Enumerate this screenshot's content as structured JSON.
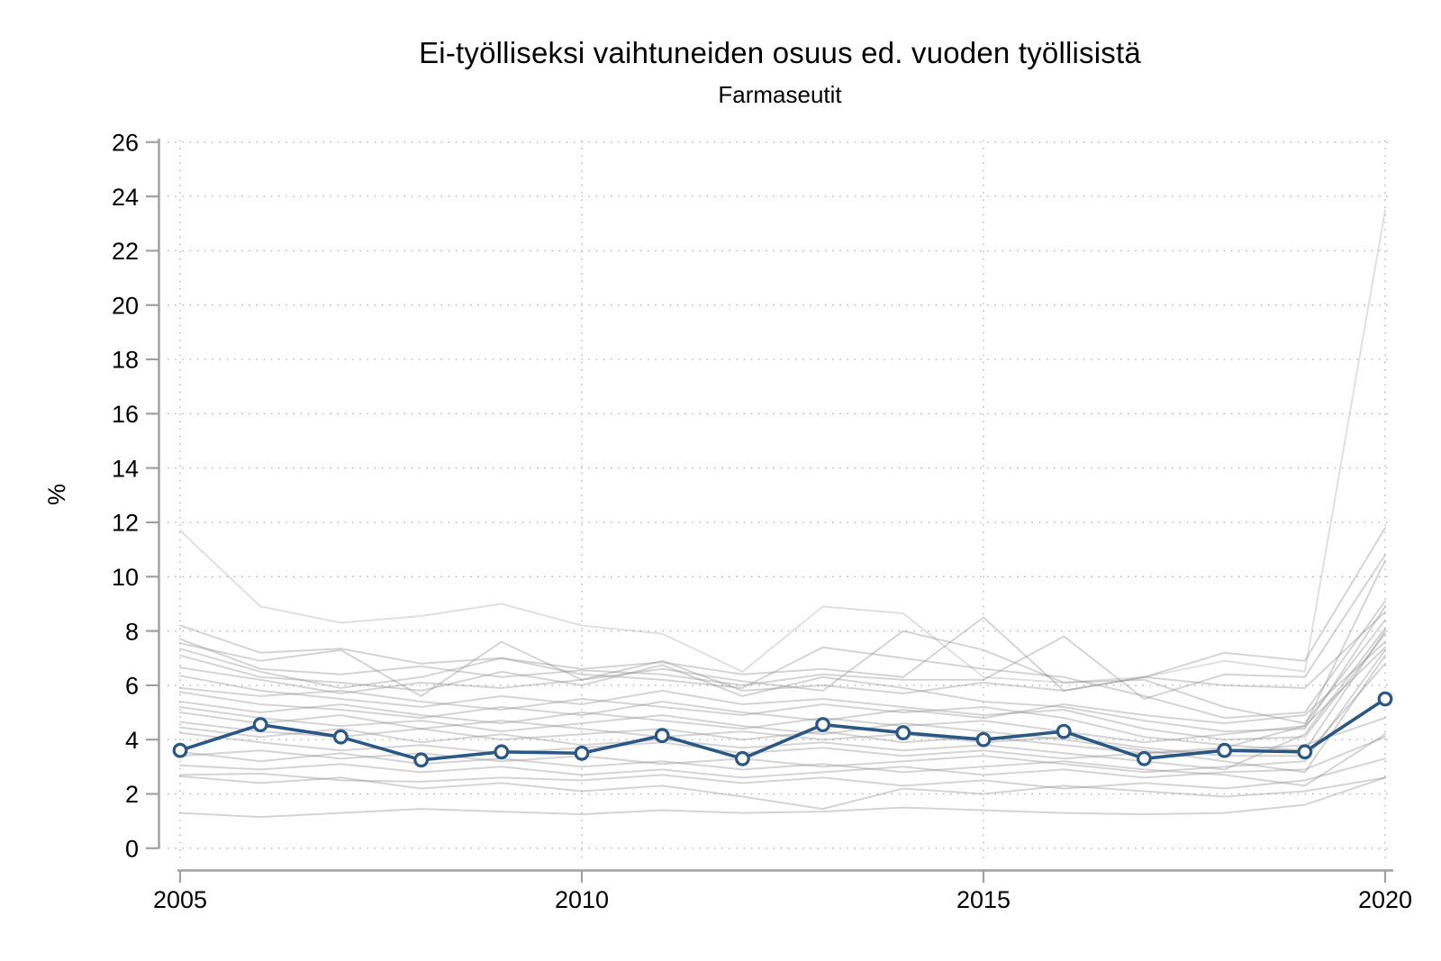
{
  "title": "Ei-työlliseksi vaihtuneiden osuus ed. vuoden työllisistä",
  "subtitle": "Farmaseutit",
  "chart_data": {
    "type": "line",
    "x": [
      2005,
      2006,
      2007,
      2008,
      2009,
      2010,
      2011,
      2012,
      2013,
      2014,
      2015,
      2016,
      2017,
      2018,
      2019,
      2020
    ],
    "xticks": [
      2005,
      2010,
      2015,
      2020
    ],
    "yticks": [
      0,
      2,
      4,
      6,
      8,
      10,
      12,
      14,
      16,
      18,
      20,
      22,
      24,
      26
    ],
    "ylim": [
      0,
      26
    ],
    "ylabel": "%",
    "grid": "dotted",
    "legend_position": "none",
    "highlight_series": {
      "name": "Farmaseutit",
      "color": "#2a5783",
      "marker": "open-circle",
      "values": [
        3.6,
        4.55,
        4.1,
        3.25,
        3.55,
        3.5,
        4.15,
        3.3,
        4.55,
        4.25,
        4.0,
        4.3,
        3.3,
        3.6,
        3.55,
        5.5
      ]
    },
    "background_series_color": "#8f8f8f",
    "background_series": [
      [
        11.7,
        8.9,
        8.3,
        8.55,
        9.0,
        8.2,
        7.9,
        6.5,
        8.9,
        8.65,
        6.3,
        6.1,
        6.3,
        6.9,
        6.5,
        23.5
      ],
      [
        8.2,
        7.2,
        7.35,
        6.8,
        7.0,
        6.6,
        6.85,
        6.4,
        6.6,
        6.3,
        8.5,
        5.8,
        6.3,
        7.2,
        6.9,
        11.8
      ],
      [
        7.7,
        6.6,
        6.4,
        6.7,
        6.3,
        6.55,
        6.4,
        6.0,
        6.4,
        6.2,
        6.2,
        7.8,
        5.5,
        6.4,
        6.3,
        10.8
      ],
      [
        7.55,
        6.9,
        7.3,
        5.6,
        7.6,
        6.2,
        6.6,
        6.15,
        5.8,
        8.0,
        7.3,
        6.1,
        6.2,
        5.2,
        4.6,
        8.4
      ],
      [
        7.35,
        6.5,
        5.9,
        6.3,
        7.0,
        6.4,
        6.2,
        5.9,
        7.4,
        7.0,
        6.6,
        6.3,
        5.6,
        4.8,
        5.0,
        9.1
      ],
      [
        7.1,
        6.3,
        6.1,
        5.8,
        6.5,
        6.0,
        6.75,
        5.6,
        6.3,
        5.9,
        5.4,
        5.2,
        4.7,
        4.3,
        4.4,
        8.9
      ],
      [
        6.65,
        6.2,
        5.7,
        6.1,
        5.9,
        6.2,
        6.9,
        5.8,
        6.0,
        5.7,
        6.1,
        5.8,
        6.3,
        6.0,
        5.9,
        8.7
      ],
      [
        6.35,
        5.8,
        5.5,
        5.2,
        5.6,
        5.3,
        5.8,
        5.3,
        5.5,
        5.2,
        4.9,
        5.1,
        4.4,
        4.0,
        4.1,
        7.9
      ],
      [
        5.9,
        5.6,
        5.8,
        5.4,
        5.1,
        5.5,
        5.2,
        4.9,
        5.3,
        5.0,
        5.2,
        4.8,
        4.1,
        3.8,
        3.6,
        8.0
      ],
      [
        5.75,
        5.3,
        5.1,
        4.8,
        5.2,
        4.9,
        5.4,
        5.0,
        4.7,
        5.1,
        4.8,
        5.3,
        4.9,
        4.6,
        4.9,
        7.6
      ],
      [
        5.4,
        5.0,
        5.3,
        4.9,
        4.6,
        5.0,
        4.7,
        4.4,
        4.8,
        4.5,
        4.7,
        4.3,
        3.9,
        4.2,
        4.5,
        7.4
      ],
      [
        5.2,
        4.8,
        4.5,
        4.7,
        4.3,
        4.6,
        4.9,
        4.5,
        4.2,
        4.6,
        4.3,
        4.0,
        3.6,
        3.2,
        2.8,
        7.1
      ],
      [
        5.0,
        4.6,
        4.9,
        4.4,
        4.7,
        4.4,
        4.1,
        4.3,
        4.0,
        4.2,
        3.9,
        4.1,
        3.7,
        3.4,
        3.4,
        6.8
      ],
      [
        4.65,
        4.3,
        4.1,
        4.4,
        4.0,
        4.2,
        4.4,
        4.0,
        4.3,
        3.9,
        4.1,
        3.8,
        3.5,
        3.7,
        4.5,
        10.6
      ],
      [
        4.45,
        4.1,
        4.4,
        3.9,
        4.2,
        3.8,
        4.0,
        3.7,
        3.9,
        3.6,
        3.8,
        3.5,
        3.2,
        2.9,
        4.2,
        8.1
      ],
      [
        4.25,
        3.9,
        3.6,
        3.8,
        3.5,
        3.7,
        3.9,
        3.5,
        3.7,
        3.4,
        3.6,
        3.3,
        3.5,
        3.6,
        3.8,
        4.8
      ],
      [
        3.55,
        3.2,
        3.5,
        3.1,
        3.3,
        3.0,
        3.2,
        2.9,
        3.1,
        2.8,
        3.0,
        3.2,
        2.9,
        2.7,
        2.3,
        4.2
      ],
      [
        3.4,
        3.6,
        3.3,
        3.5,
        3.2,
        3.4,
        3.1,
        3.3,
        3.0,
        3.2,
        3.4,
        3.1,
        2.8,
        3.0,
        3.2,
        7.3
      ],
      [
        3.05,
        2.9,
        3.1,
        2.8,
        3.0,
        2.7,
        2.9,
        2.6,
        2.8,
        3.0,
        2.7,
        2.9,
        2.6,
        2.8,
        2.9,
        4.1
      ],
      [
        2.7,
        2.75,
        2.5,
        2.45,
        2.6,
        2.5,
        2.7,
        2.4,
        2.6,
        2.3,
        2.5,
        2.2,
        2.4,
        2.2,
        2.5,
        3.3
      ],
      [
        2.65,
        2.4,
        2.6,
        2.2,
        2.4,
        2.1,
        2.3,
        1.9,
        1.45,
        2.2,
        2.0,
        2.3,
        2.1,
        1.9,
        2.1,
        2.6
      ],
      [
        1.3,
        1.15,
        1.3,
        1.45,
        1.35,
        1.25,
        1.4,
        1.3,
        1.35,
        1.5,
        1.4,
        1.3,
        1.25,
        1.3,
        1.6,
        2.6
      ]
    ]
  },
  "colors": {
    "highlight": "#2a5783",
    "background_line": "#8f8f8f",
    "axis": "#a0a0a0",
    "grid": "#b8b8b8",
    "text": "#000000",
    "canvas": "#ffffff"
  }
}
